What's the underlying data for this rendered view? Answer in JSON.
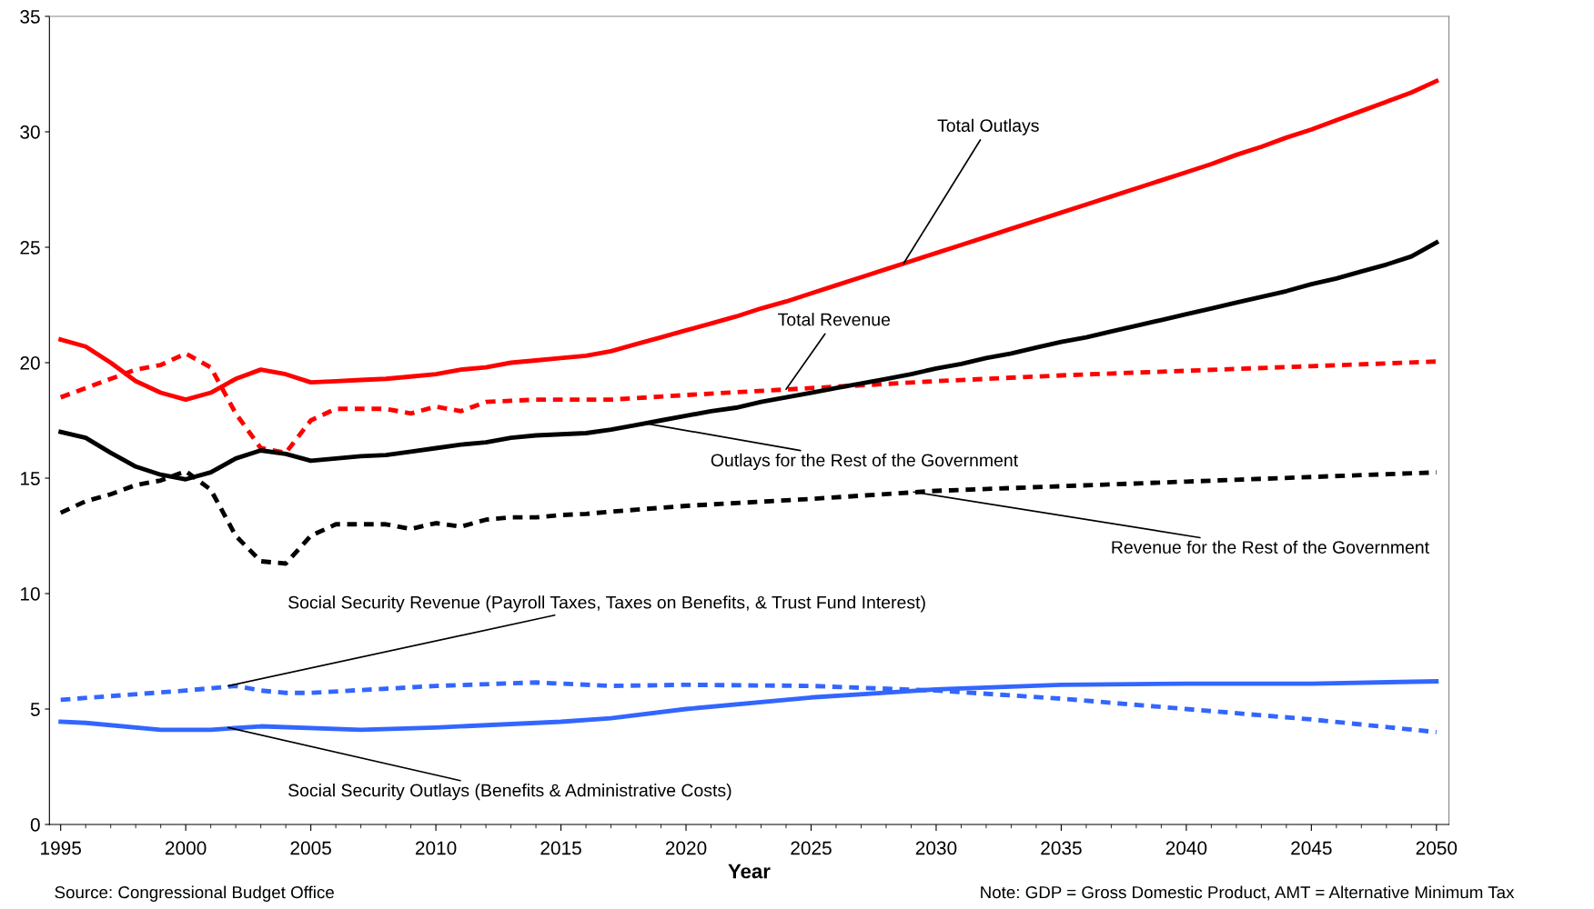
{
  "chart_data": {
    "type": "line",
    "xlabel": "Year",
    "xlim": [
      1994.55,
      2050.5
    ],
    "ylim": [
      0,
      35
    ],
    "xticks": [
      1995,
      2000,
      2005,
      2010,
      2015,
      2020,
      2025,
      2030,
      2035,
      2040,
      2045,
      2050
    ],
    "yticks": [
      0,
      5,
      10,
      15,
      20,
      25,
      30,
      35
    ],
    "grid": false,
    "legend": false,
    "marker": "none",
    "series": [
      {
        "color": "#ff0000",
        "line_style": "solid",
        "x": [
          1995,
          1996,
          1997,
          1998,
          1999,
          2000,
          2001,
          2002,
          2003,
          2004,
          2005,
          2006,
          2007,
          2008,
          2009,
          2010,
          2011,
          2012,
          2013,
          2014,
          2015,
          2016,
          2017,
          2018,
          2019,
          2020,
          2021,
          2022,
          2023,
          2024,
          2025,
          2026,
          2027,
          2028,
          2029,
          2030,
          2031,
          2032,
          2033,
          2034,
          2035,
          2036,
          2037,
          2038,
          2039,
          2040,
          2041,
          2042,
          2043,
          2044,
          2045,
          2046,
          2047,
          2048,
          2049,
          2050
        ],
        "values": [
          21.0,
          20.7,
          20.0,
          19.2,
          18.7,
          18.4,
          18.7,
          19.3,
          19.7,
          19.5,
          19.15,
          19.2,
          19.25,
          19.3,
          19.4,
          19.5,
          19.7,
          19.8,
          20.0,
          20.1,
          20.2,
          20.3,
          20.5,
          20.8,
          21.1,
          21.4,
          21.7,
          22.0,
          22.35,
          22.65,
          23.0,
          23.35,
          23.7,
          24.05,
          24.4,
          24.75,
          25.1,
          25.45,
          25.8,
          26.15,
          26.5,
          26.85,
          27.2,
          27.55,
          27.9,
          28.25,
          28.6,
          29.0,
          29.35,
          29.75,
          30.1,
          30.5,
          30.9,
          31.3,
          31.7,
          32.2
        ]
      },
      {
        "color": "#ff0000",
        "line_style": "dashed",
        "x": [
          1995,
          1996,
          1997,
          1998,
          1999,
          2000,
          2001,
          2002,
          2003,
          2004,
          2005,
          2006,
          2007,
          2008,
          2009,
          2010,
          2011,
          2012,
          2013,
          2014,
          2015,
          2016,
          2017,
          2020,
          2025,
          2030,
          2035,
          2040,
          2045,
          2050
        ],
        "values": [
          18.5,
          18.9,
          19.3,
          19.7,
          19.9,
          20.4,
          19.8,
          17.8,
          16.3,
          16.1,
          17.5,
          18.0,
          18.0,
          18.0,
          17.8,
          18.1,
          17.9,
          18.3,
          18.35,
          18.4,
          18.4,
          18.4,
          18.4,
          18.6,
          18.9,
          19.2,
          19.45,
          19.65,
          19.85,
          20.05
        ]
      },
      {
        "color": "#000000",
        "line_style": "solid",
        "x": [
          1995,
          1996,
          1997,
          1998,
          1999,
          2000,
          2001,
          2002,
          2003,
          2004,
          2005,
          2006,
          2007,
          2008,
          2009,
          2010,
          2011,
          2012,
          2013,
          2014,
          2015,
          2016,
          2017,
          2018,
          2019,
          2020,
          2021,
          2022,
          2023,
          2024,
          2025,
          2026,
          2027,
          2028,
          2029,
          2030,
          2031,
          2032,
          2033,
          2034,
          2035,
          2036,
          2037,
          2038,
          2039,
          2040,
          2041,
          2042,
          2043,
          2044,
          2045,
          2046,
          2047,
          2048,
          2049,
          2050
        ],
        "values": [
          17.0,
          16.75,
          16.1,
          15.5,
          15.15,
          14.95,
          15.25,
          15.85,
          16.2,
          16.05,
          15.75,
          15.85,
          15.95,
          16.0,
          16.15,
          16.3,
          16.45,
          16.55,
          16.75,
          16.85,
          16.9,
          16.95,
          17.1,
          17.3,
          17.5,
          17.7,
          17.9,
          18.05,
          18.3,
          18.5,
          18.7,
          18.9,
          19.1,
          19.3,
          19.5,
          19.75,
          19.95,
          20.2,
          20.4,
          20.65,
          20.9,
          21.1,
          21.35,
          21.6,
          21.85,
          22.1,
          22.35,
          22.6,
          22.85,
          23.1,
          23.4,
          23.65,
          23.95,
          24.25,
          24.6,
          25.2
        ]
      },
      {
        "color": "#000000",
        "line_style": "dashed",
        "x": [
          1995,
          1996,
          1997,
          1998,
          1999,
          2000,
          2001,
          2002,
          2003,
          2004,
          2005,
          2006,
          2007,
          2008,
          2009,
          2010,
          2011,
          2012,
          2013,
          2014,
          2015,
          2016,
          2017,
          2020,
          2025,
          2030,
          2035,
          2040,
          2045,
          2050
        ],
        "values": [
          13.5,
          14.0,
          14.3,
          14.7,
          14.9,
          15.3,
          14.5,
          12.5,
          11.4,
          11.3,
          12.5,
          13.0,
          13.0,
          13.0,
          12.8,
          13.05,
          12.9,
          13.2,
          13.3,
          13.3,
          13.4,
          13.45,
          13.55,
          13.8,
          14.1,
          14.45,
          14.65,
          14.85,
          15.05,
          15.25
        ]
      },
      {
        "color": "#3366ff",
        "line_style": "dashed",
        "x": [
          1995,
          2000,
          2002,
          2003,
          2004,
          2005,
          2010,
          2014,
          2017,
          2020,
          2025,
          2030,
          2035,
          2040,
          2045,
          2050
        ],
        "values": [
          5.4,
          5.8,
          6.0,
          5.8,
          5.7,
          5.7,
          6.0,
          6.15,
          6.0,
          6.05,
          6.0,
          5.8,
          5.45,
          5.0,
          4.55,
          4.0
        ]
      },
      {
        "color": "#3366ff",
        "line_style": "solid",
        "x": [
          1995,
          1996,
          1999,
          2001,
          2003,
          2007,
          2010,
          2015,
          2017,
          2020,
          2025,
          2030,
          2035,
          2040,
          2045,
          2050
        ],
        "values": [
          4.45,
          4.4,
          4.1,
          4.1,
          4.25,
          4.1,
          4.2,
          4.45,
          4.6,
          5.0,
          5.5,
          5.85,
          6.05,
          6.1,
          6.1,
          6.2
        ]
      }
    ],
    "annotations": [
      {
        "text": "Total Outlays",
        "x": 2028.7,
        "y": 24.3
      },
      {
        "text": "Total Revenue",
        "x": 2024,
        "y": 18.85
      },
      {
        "text": "Outlays for the Rest of the Government",
        "x": 2018.5,
        "y": 17.35
      },
      {
        "text": "Revenue for the Rest of the Government",
        "x": 2029.1,
        "y": 14.4
      },
      {
        "text": "Social Security Revenue (Payroll Taxes, Taxes on Benefits, & Trust Fund Interest)",
        "x": 2001.7,
        "y": 6.0
      },
      {
        "text": "Social Security Outlays (Benefits & Administrative Costs)",
        "x": 2001.7,
        "y": 4.2
      },
      "Source: Congressional Budget Office",
      "Note: GDP = Gross Domestic Product, AMT = Alternative Minimum Tax"
    ]
  }
}
